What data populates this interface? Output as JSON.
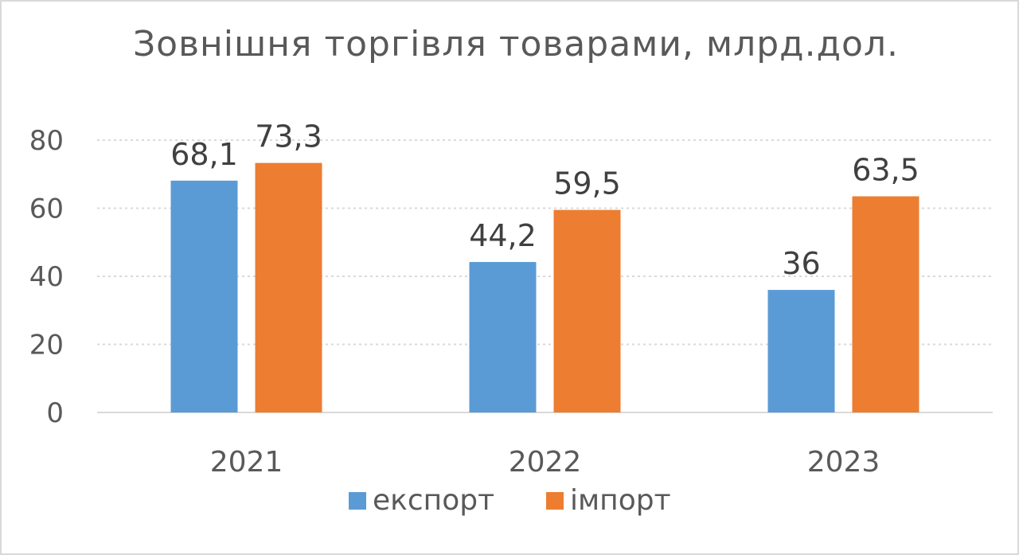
{
  "chart_data": {
    "type": "bar",
    "title": "Зовнішня торгівля товарами, млрд.дол.",
    "categories": [
      "2021",
      "2022",
      "2023"
    ],
    "series": [
      {
        "name": "експорт",
        "values": [
          68.1,
          44.2,
          36
        ],
        "labels": [
          "68,1",
          "44,2",
          "36"
        ],
        "color": "#5b9bd5"
      },
      {
        "name": "імпорт",
        "values": [
          73.3,
          59.5,
          63.5
        ],
        "labels": [
          "73,3",
          "59,5",
          "63,5"
        ],
        "color": "#ed7d31"
      }
    ],
    "ylim": [
      0,
      80
    ],
    "yticks": [
      0,
      20,
      40,
      60,
      80
    ],
    "grid": true,
    "legend_position": "bottom"
  }
}
